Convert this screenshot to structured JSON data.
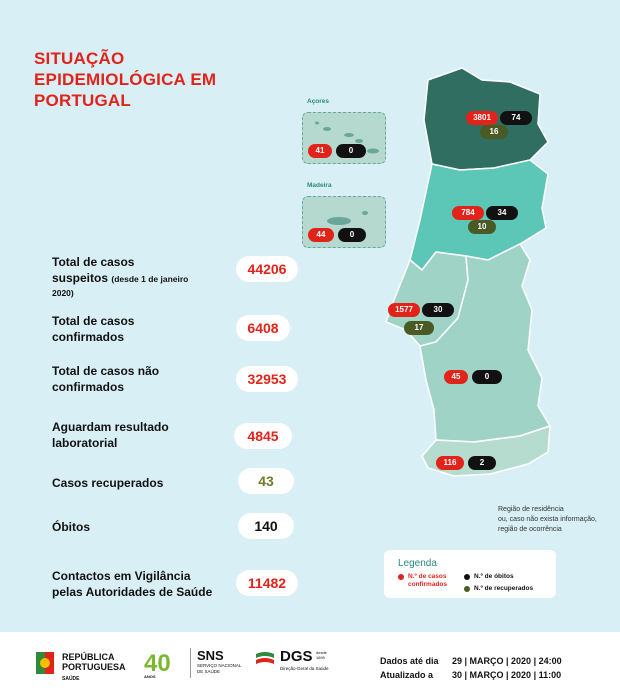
{
  "title": {
    "line1": "SITUAÇÃO",
    "line2": "EPIDEMIOLÓGICA EM",
    "line3": "PORTUGAL"
  },
  "stats": {
    "suspeitos": {
      "line1": "Total de casos",
      "line2": "suspeitos",
      "note": "(desde 1 de janeiro",
      "note2": "2020)",
      "value": "44206"
    },
    "confirmados": {
      "line1": "Total de casos",
      "line2": "confirmados",
      "value": "6408"
    },
    "nao_confirmados": {
      "line1": "Total de casos não",
      "line2": "confirmados",
      "value": "32953"
    },
    "aguardam": {
      "line1": "Aguardam resultado",
      "line2": "laboratorial",
      "value": "4845"
    },
    "recuperados": {
      "line1": "Casos recuperados",
      "value": "43"
    },
    "obitos": {
      "line1": "Óbitos",
      "value": "140"
    },
    "contactos": {
      "line1": "Contactos em Vigilância",
      "line2": "pelas Autoridades de Saúde",
      "value": "11482"
    }
  },
  "islands": {
    "acores": {
      "label": "Açores",
      "confirmed": "41",
      "deaths": "0"
    },
    "madeira": {
      "label": "Madeira",
      "confirmed": "44",
      "deaths": "0"
    }
  },
  "regions": {
    "norte": {
      "confirmed": "3801",
      "deaths": "74",
      "recovered": "16"
    },
    "centro": {
      "confirmed": "784",
      "deaths": "34",
      "recovered": "10"
    },
    "lisboa": {
      "confirmed": "1577",
      "deaths": "30",
      "recovered": "17"
    },
    "alentejo": {
      "confirmed": "45",
      "deaths": "0"
    },
    "algarve": {
      "confirmed": "116",
      "deaths": "2"
    }
  },
  "note": {
    "line1": "Região de residência",
    "line2": "ou, caso não exista informação,",
    "line3": "região de ocorrência"
  },
  "legend": {
    "title": "Legenda",
    "confirmed": "N.º de casos",
    "confirmed2": "confirmados",
    "deaths": "N.º de óbitos",
    "recovered": "N.º de recuperados",
    "colors": {
      "confirmed": "#e2231a",
      "deaths": "#111111",
      "recovered": "#4a5a24"
    }
  },
  "footer": {
    "rep1": "REPÚBLICA",
    "rep2": "PORTUGUESA",
    "rep3": "SAÚDE",
    "sns40": "40",
    "sns40_small": "ANOS",
    "sns": "SNS",
    "sns_sub1": "SERVIÇO NACIONAL",
    "sns_sub2": "DE SAÚDE",
    "dgs": "DGS",
    "dgs_sub": "Direção-Geral da Saúde",
    "dgs_since1": "desde",
    "dgs_since2": "1899",
    "dados_label": "Dados até dia",
    "dados_value": "29 | MARÇO | 2020 | 24:00",
    "atual_label": "Atualizado a",
    "atual_value": "30 | MARÇO | 2020 | 11:00"
  }
}
